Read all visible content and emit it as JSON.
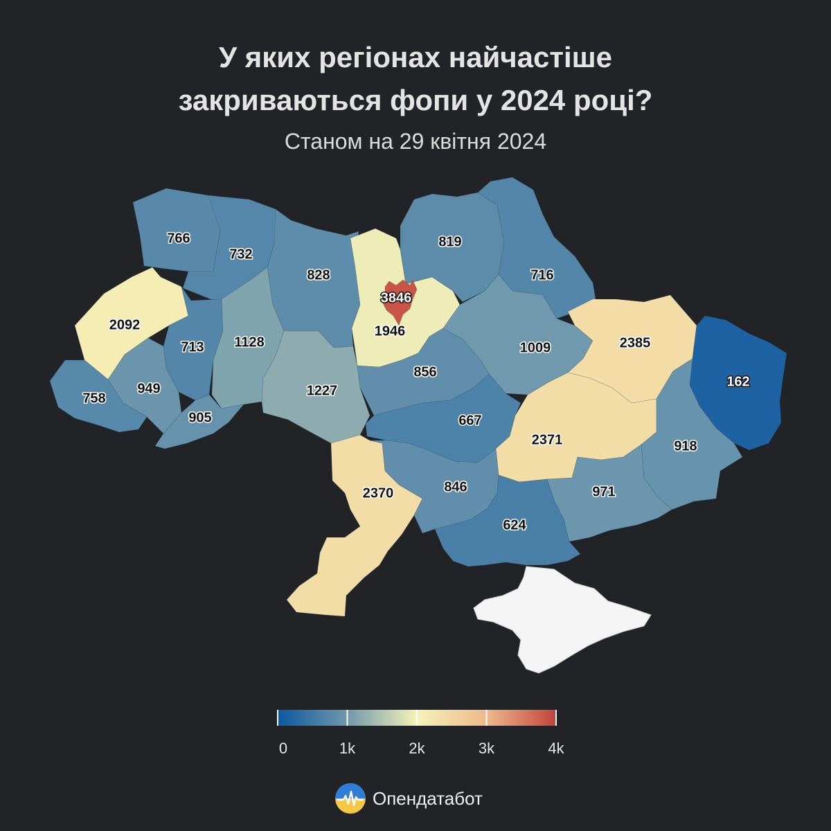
{
  "title_line1": "У яких регіонах найчастіше",
  "title_line2": "закриваються фопи у 2024 році?",
  "subtitle": "Станом на 29 квітня 2024",
  "map_data": {
    "type": "choropleth",
    "unit": "closed FOPs",
    "scale": {
      "min": 0,
      "max": 4000,
      "colors": [
        "#0d58a0",
        "#5b8fae",
        "#a9c3b3",
        "#f6f2b8",
        "#f1c996",
        "#d9826a",
        "#c2433a"
      ]
    },
    "regions": [
      {
        "name": "Volyn",
        "value": 766
      },
      {
        "name": "Rivne",
        "value": 732
      },
      {
        "name": "Zhytomyr",
        "value": 828
      },
      {
        "name": "Kyiv Oblast",
        "value": 1946
      },
      {
        "name": "Kyiv City",
        "value": 3846
      },
      {
        "name": "Chernihiv",
        "value": 819
      },
      {
        "name": "Sumy",
        "value": 716
      },
      {
        "name": "Lviv",
        "value": 2092
      },
      {
        "name": "Ternopil",
        "value": 713
      },
      {
        "name": "Khmelnytskyi",
        "value": 1128
      },
      {
        "name": "Zakarpattia",
        "value": 758
      },
      {
        "name": "Ivano-Frankivsk",
        "value": 949
      },
      {
        "name": "Chernivtsi",
        "value": 905
      },
      {
        "name": "Vinnytsia",
        "value": 1227
      },
      {
        "name": "Cherkasy",
        "value": 856
      },
      {
        "name": "Poltava",
        "value": 1009
      },
      {
        "name": "Kharkiv",
        "value": 2385
      },
      {
        "name": "Luhansk",
        "value": 162
      },
      {
        "name": "Kirovohrad",
        "value": 667
      },
      {
        "name": "Dnipropetrovsk",
        "value": 2371
      },
      {
        "name": "Donetsk",
        "value": 918
      },
      {
        "name": "Odesa",
        "value": 2370
      },
      {
        "name": "Mykolaiv",
        "value": 846
      },
      {
        "name": "Zaporizhzhia",
        "value": 971
      },
      {
        "name": "Kherson",
        "value": 624
      }
    ]
  },
  "legend": {
    "ticks": [
      "0",
      "1k",
      "2k",
      "3k",
      "4k"
    ]
  },
  "brand": "Опендатабот",
  "colors": {
    "background": "#222327",
    "crimea": "#f5f5f5"
  }
}
